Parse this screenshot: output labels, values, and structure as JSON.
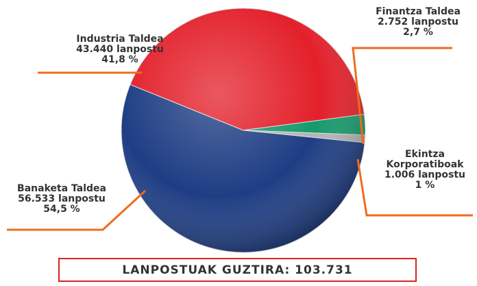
{
  "chart_data": {
    "type": "pie",
    "categories": [
      "Industria Taldea",
      "Finantza Taldea",
      "Ekintza Korporatiboak",
      "Banaketa Taldea"
    ],
    "values": [
      41.8,
      2.7,
      1,
      54.5
    ],
    "value_labels": [
      "41,8 %",
      "2,7 %",
      "1 %",
      "54,5 %"
    ],
    "counts": [
      43440,
      2752,
      1006,
      56533
    ],
    "count_labels": [
      "43.440 lanpostu",
      "2.752 lanpostu",
      "1.006 lanpostu",
      "56.533 lanpostu"
    ],
    "colors": [
      "#e3202b",
      "#179a6c",
      "#b4b4b4",
      "#1e3d84"
    ],
    "total": "LANPOSTUAK GUZTIRA: 103.731"
  }
}
